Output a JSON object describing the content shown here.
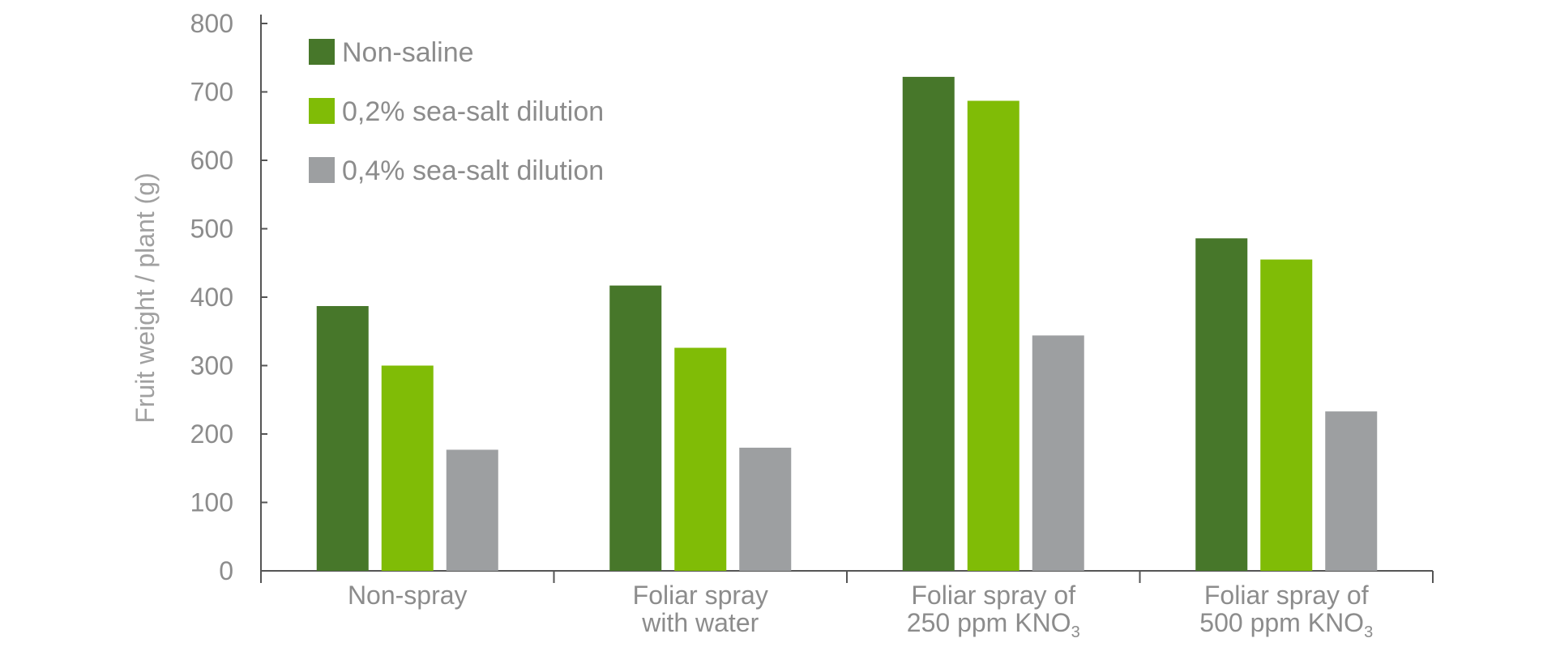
{
  "chart_data": {
    "type": "bar",
    "ylabel": "Fruit weight / plant (g)",
    "xlabel": "",
    "ylim": [
      0,
      800
    ],
    "yticks": [
      0,
      100,
      200,
      300,
      400,
      500,
      600,
      700,
      800
    ],
    "categories": [
      [
        "Non-spray"
      ],
      [
        "Foliar spray",
        "with water"
      ],
      [
        "Foliar spray of",
        "250 ppm KNO₃"
      ],
      [
        "Foliar spray of",
        "500 ppm KNO₃"
      ]
    ],
    "series": [
      {
        "name": "Non-saline",
        "color": "#47772a",
        "values": [
          387,
          417,
          722,
          486
        ]
      },
      {
        "name": "0,2% sea-salt dilution",
        "color": "#80bc06",
        "values": [
          300,
          326,
          687,
          455
        ]
      },
      {
        "name": "0,4% sea-salt dilution",
        "color": "#9d9fa1",
        "values": [
          177,
          180,
          344,
          233
        ]
      }
    ],
    "legend_position": "top-left",
    "grid": false
  }
}
